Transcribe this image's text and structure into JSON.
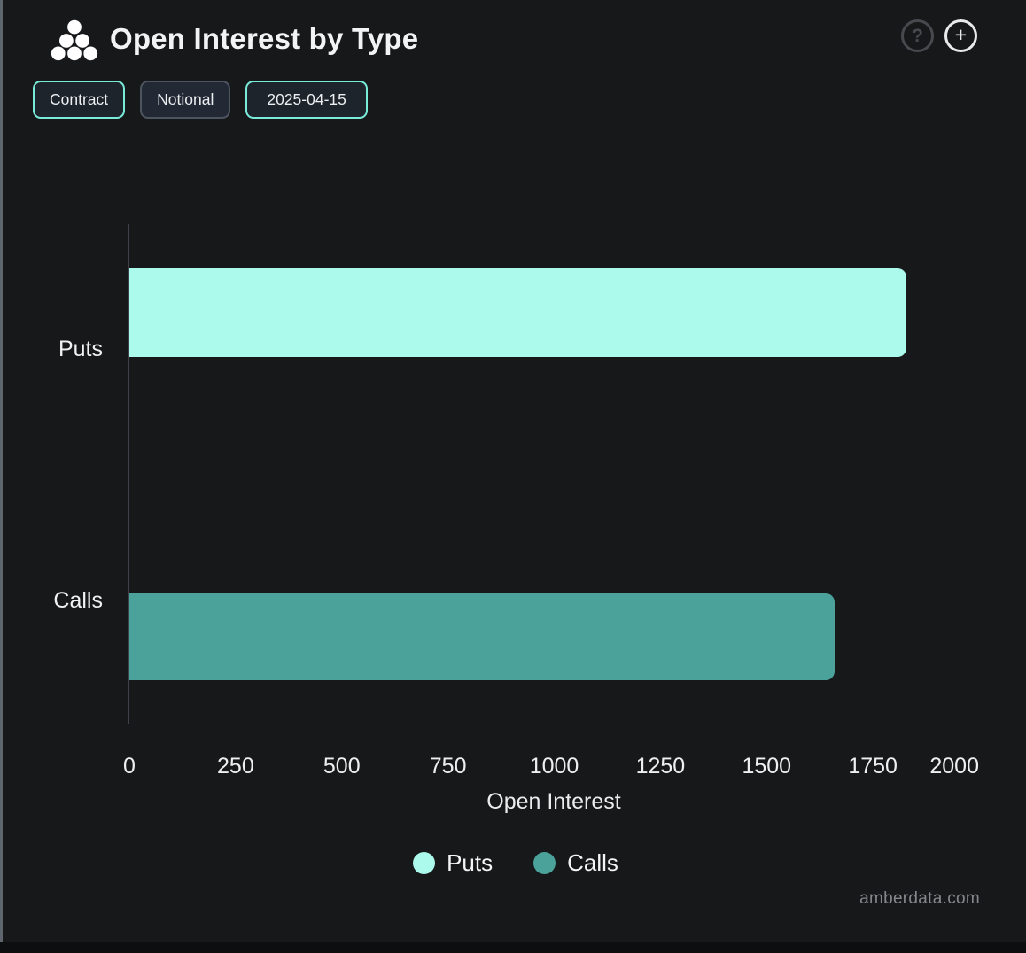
{
  "header": {
    "title": "Open Interest by Type",
    "actions": {
      "help_glyph": "?",
      "add_glyph": "+"
    }
  },
  "toolbar": {
    "buttons": [
      {
        "label": "Contract",
        "active": true
      },
      {
        "label": "Notional",
        "active": false
      },
      {
        "label": "2025-04-15",
        "active": true
      }
    ]
  },
  "chart_data": {
    "type": "bar",
    "orientation": "horizontal",
    "title": "Open Interest by Type",
    "categories": [
      "Puts",
      "Calls"
    ],
    "series": [
      {
        "name": "Puts",
        "value": 1830,
        "color": "#acfaeb"
      },
      {
        "name": "Calls",
        "value": 1660,
        "color": "#4aa29a"
      }
    ],
    "xlabel": "Open Interest",
    "ylabel": "",
    "xticks": [
      0,
      250,
      500,
      750,
      1000,
      1250,
      1500,
      1750,
      2000
    ],
    "xlim": [
      0,
      2000
    ],
    "grid": false,
    "legend_position": "bottom"
  },
  "footer": {
    "watermark": "amberdata.com"
  },
  "colors": {
    "background": "#16181a",
    "panel_border": "#5f656d",
    "accent_teal_border": "#79ebd9",
    "puts_bar": "#acfaeb",
    "calls_bar": "#4aa29a",
    "axis_line": "#3e4248",
    "text_primary": "#f2f3f4",
    "text_muted": "#85878b"
  }
}
